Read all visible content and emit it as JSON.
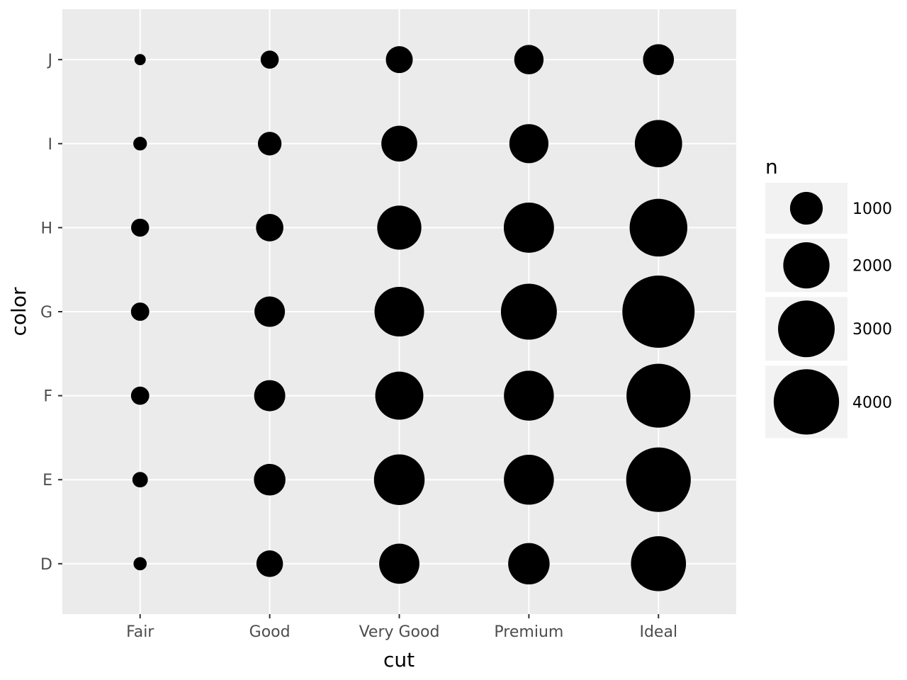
{
  "chart_data": {
    "type": "scatter",
    "subtype": "count-bubble",
    "title": "",
    "xlabel": "cut",
    "ylabel": "color",
    "x_categories": [
      "Fair",
      "Good",
      "Very Good",
      "Premium",
      "Ideal"
    ],
    "y_categories": [
      "D",
      "E",
      "F",
      "G",
      "H",
      "I",
      "J"
    ],
    "points": [
      {
        "x": "Fair",
        "y": "D",
        "n": 163
      },
      {
        "x": "Fair",
        "y": "E",
        "n": 224
      },
      {
        "x": "Fair",
        "y": "F",
        "n": 312
      },
      {
        "x": "Fair",
        "y": "G",
        "n": 314
      },
      {
        "x": "Fair",
        "y": "H",
        "n": 303
      },
      {
        "x": "Fair",
        "y": "I",
        "n": 175
      },
      {
        "x": "Fair",
        "y": "J",
        "n": 119
      },
      {
        "x": "Good",
        "y": "D",
        "n": 662
      },
      {
        "x": "Good",
        "y": "E",
        "n": 933
      },
      {
        "x": "Good",
        "y": "F",
        "n": 909
      },
      {
        "x": "Good",
        "y": "G",
        "n": 871
      },
      {
        "x": "Good",
        "y": "H",
        "n": 702
      },
      {
        "x": "Good",
        "y": "I",
        "n": 522
      },
      {
        "x": "Good",
        "y": "J",
        "n": 307
      },
      {
        "x": "Very Good",
        "y": "D",
        "n": 1513
      },
      {
        "x": "Very Good",
        "y": "E",
        "n": 2400
      },
      {
        "x": "Very Good",
        "y": "F",
        "n": 2164
      },
      {
        "x": "Very Good",
        "y": "G",
        "n": 2299
      },
      {
        "x": "Very Good",
        "y": "H",
        "n": 1824
      },
      {
        "x": "Very Good",
        "y": "I",
        "n": 1204
      },
      {
        "x": "Very Good",
        "y": "J",
        "n": 678
      },
      {
        "x": "Premium",
        "y": "D",
        "n": 1603
      },
      {
        "x": "Premium",
        "y": "E",
        "n": 2337
      },
      {
        "x": "Premium",
        "y": "F",
        "n": 2331
      },
      {
        "x": "Premium",
        "y": "G",
        "n": 2924
      },
      {
        "x": "Premium",
        "y": "H",
        "n": 2360
      },
      {
        "x": "Premium",
        "y": "I",
        "n": 1428
      },
      {
        "x": "Premium",
        "y": "J",
        "n": 808
      },
      {
        "x": "Ideal",
        "y": "D",
        "n": 2834
      },
      {
        "x": "Ideal",
        "y": "E",
        "n": 3903
      },
      {
        "x": "Ideal",
        "y": "F",
        "n": 3826
      },
      {
        "x": "Ideal",
        "y": "G",
        "n": 4884
      },
      {
        "x": "Ideal",
        "y": "H",
        "n": 3115
      },
      {
        "x": "Ideal",
        "y": "I",
        "n": 2093
      },
      {
        "x": "Ideal",
        "y": "J",
        "n": 896
      }
    ],
    "size_legend": {
      "title": "n",
      "breaks": [
        1000,
        2000,
        3000,
        4000
      ],
      "labels": [
        "1000",
        "2000",
        "3000",
        "4000"
      ]
    },
    "grid": true,
    "legend_position": "right",
    "colors": {
      "panel_background": "#ebebeb",
      "gridline": "#ffffff",
      "point": "#000000",
      "legend_key_background": "#f2f2f2",
      "tick_text": "#4d4d4d",
      "tick_mark": "#333333"
    }
  }
}
